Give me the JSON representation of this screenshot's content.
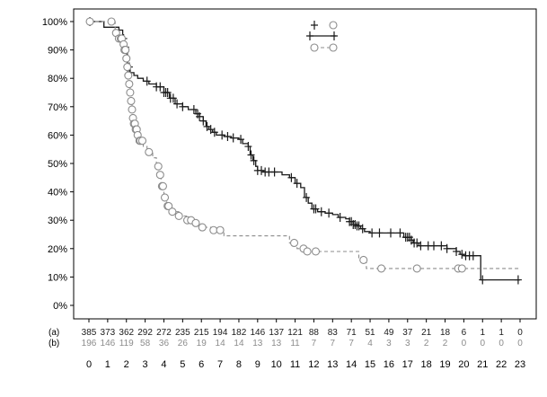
{
  "chart_data": {
    "type": "line",
    "title": "",
    "xlabel": "",
    "ylabel": "",
    "xlim": [
      0,
      23
    ],
    "ylim": [
      0,
      100
    ],
    "x_ticks": [
      0,
      1,
      2,
      3,
      4,
      5,
      6,
      7,
      8,
      9,
      10,
      11,
      12,
      13,
      14,
      15,
      16,
      17,
      18,
      19,
      20,
      21,
      22,
      23
    ],
    "y_ticks": [
      {
        "value": 0,
        "label": "0%"
      },
      {
        "value": 10,
        "label": "10%"
      },
      {
        "value": 20,
        "label": "20%"
      },
      {
        "value": 30,
        "label": "30%"
      },
      {
        "value": 40,
        "label": "40%"
      },
      {
        "value": 50,
        "label": "50%"
      },
      {
        "value": 60,
        "label": "60%"
      },
      {
        "value": 70,
        "label": "70%"
      },
      {
        "value": 80,
        "label": "80%"
      },
      {
        "value": 90,
        "label": "90%"
      },
      {
        "value": 100,
        "label": "100%"
      }
    ],
    "grid": false,
    "legend": {
      "placement": "top-right",
      "entries": [
        "",
        ""
      ]
    },
    "colors": {
      "series_a": "#1a1a1a",
      "series_b": "#8c8c8c"
    },
    "series": [
      {
        "key": "a",
        "style": "solid",
        "marker": "plus",
        "color": "#1a1a1a",
        "steps": [
          [
            0,
            100
          ],
          [
            0.8,
            98
          ],
          [
            1.6,
            97
          ],
          [
            1.8,
            94
          ],
          [
            1.9,
            91
          ],
          [
            2.05,
            84
          ],
          [
            2.2,
            82
          ],
          [
            2.4,
            81
          ],
          [
            2.6,
            80
          ],
          [
            2.9,
            79
          ],
          [
            3.2,
            78
          ],
          [
            3.6,
            77
          ],
          [
            4.0,
            75
          ],
          [
            4.3,
            73
          ],
          [
            4.6,
            71
          ],
          [
            5.0,
            70
          ],
          [
            5.3,
            69
          ],
          [
            5.7,
            67.5
          ],
          [
            5.9,
            66.5
          ],
          [
            6.1,
            65
          ],
          [
            6.25,
            63
          ],
          [
            6.4,
            62
          ],
          [
            6.6,
            61
          ],
          [
            6.8,
            60
          ],
          [
            7.2,
            59.5
          ],
          [
            7.6,
            59
          ],
          [
            8.0,
            58.5
          ],
          [
            8.2,
            57
          ],
          [
            8.5,
            56
          ],
          [
            8.6,
            53
          ],
          [
            8.75,
            51
          ],
          [
            8.9,
            49
          ],
          [
            9.0,
            47.5
          ],
          [
            9.3,
            47
          ],
          [
            10.3,
            46
          ],
          [
            10.7,
            45
          ],
          [
            11.0,
            43
          ],
          [
            11.3,
            41.5
          ],
          [
            11.5,
            38
          ],
          [
            11.7,
            36
          ],
          [
            11.9,
            34
          ],
          [
            12.2,
            33
          ],
          [
            12.6,
            32.5
          ],
          [
            13.0,
            32
          ],
          [
            13.3,
            31
          ],
          [
            13.7,
            30.5
          ],
          [
            13.9,
            29.5
          ],
          [
            14.1,
            28.5
          ],
          [
            14.3,
            28
          ],
          [
            14.5,
            27
          ],
          [
            14.7,
            26
          ],
          [
            15.0,
            25.5
          ],
          [
            16.0,
            25.5
          ],
          [
            16.8,
            24
          ],
          [
            17.2,
            23
          ],
          [
            17.3,
            22
          ],
          [
            17.6,
            21
          ],
          [
            18.0,
            21
          ],
          [
            19.1,
            20
          ],
          [
            19.6,
            19
          ],
          [
            19.8,
            18
          ],
          [
            20.0,
            17.5
          ],
          [
            20.9,
            9
          ],
          [
            23.0,
            9
          ]
        ],
        "censor_x": [
          0.05,
          1.85,
          1.95,
          2.05,
          2.15,
          3.1,
          3.6,
          3.8,
          4.0,
          4.1,
          4.2,
          4.35,
          4.5,
          4.7,
          5.0,
          5.6,
          5.8,
          5.9,
          6.1,
          6.3,
          6.5,
          6.7,
          7.1,
          7.4,
          7.7,
          8.1,
          8.5,
          8.65,
          8.8,
          9.0,
          9.2,
          9.4,
          9.6,
          9.9,
          10.8,
          11.1,
          11.6,
          12.0,
          12.1,
          12.4,
          12.8,
          13.4,
          13.9,
          14.0,
          14.1,
          14.2,
          14.3,
          14.4,
          14.6,
          15.1,
          15.5,
          16.1,
          16.6,
          16.9,
          17.0,
          17.1,
          17.2,
          17.35,
          17.5,
          17.7,
          18.1,
          18.4,
          18.8,
          19.1,
          19.6,
          19.9,
          20.1,
          20.3,
          20.5,
          21.0,
          22.9
        ]
      },
      {
        "key": "b",
        "style": "dashed",
        "marker": "circle",
        "color": "#8c8c8c",
        "steps": [
          [
            0,
            100
          ],
          [
            1.4,
            96
          ],
          [
            1.6,
            94
          ],
          [
            1.8,
            92
          ],
          [
            1.9,
            90
          ],
          [
            2.0,
            87
          ],
          [
            2.05,
            84
          ],
          [
            2.1,
            81
          ],
          [
            2.15,
            78
          ],
          [
            2.2,
            75
          ],
          [
            2.25,
            72
          ],
          [
            2.3,
            69
          ],
          [
            2.35,
            66
          ],
          [
            2.4,
            64
          ],
          [
            2.5,
            62
          ],
          [
            2.6,
            60
          ],
          [
            2.7,
            58
          ],
          [
            2.9,
            56
          ],
          [
            3.1,
            54
          ],
          [
            3.4,
            52
          ],
          [
            3.6,
            49
          ],
          [
            3.75,
            46
          ],
          [
            3.85,
            42
          ],
          [
            4.0,
            38
          ],
          [
            4.15,
            35
          ],
          [
            4.4,
            33
          ],
          [
            4.8,
            31.5
          ],
          [
            5.2,
            30
          ],
          [
            5.6,
            29
          ],
          [
            6.0,
            27.5
          ],
          [
            6.6,
            26.5
          ],
          [
            7.2,
            24.5
          ],
          [
            10.7,
            22
          ],
          [
            11.1,
            20
          ],
          [
            11.5,
            19
          ],
          [
            14.4,
            16
          ],
          [
            14.8,
            13
          ],
          [
            23.0,
            13
          ]
        ],
        "censor_x": [
          0.05,
          1.2,
          1.45,
          1.6,
          1.7,
          1.75,
          1.85,
          1.9,
          1.95,
          2.0,
          2.05,
          2.1,
          2.15,
          2.2,
          2.25,
          2.3,
          2.35,
          2.4,
          2.45,
          2.5,
          2.55,
          2.6,
          2.7,
          2.75,
          2.85,
          3.2,
          3.7,
          3.8,
          3.9,
          3.95,
          4.05,
          4.2,
          4.25,
          4.45,
          4.8,
          5.25,
          5.45,
          5.7,
          6.05,
          6.65,
          7.0,
          10.95,
          11.45,
          11.65,
          12.1,
          14.65,
          15.6,
          17.5,
          19.7,
          19.9
        ]
      }
    ],
    "at_risk": {
      "x": [
        0,
        1,
        2,
        3,
        4,
        5,
        6,
        7,
        8,
        9,
        10,
        11,
        12,
        13,
        14,
        15,
        16,
        17,
        18,
        19,
        20,
        21,
        22,
        23
      ],
      "rows": [
        {
          "label": "(a)",
          "values": [
            "385",
            "373",
            "362",
            "292",
            "272",
            "235",
            "215",
            "194",
            "182",
            "146",
            "137",
            "121",
            "88",
            "83",
            "71",
            "51",
            "49",
            "37",
            "21",
            "18",
            "6",
            "1",
            "1",
            "0"
          ]
        },
        {
          "label": "(b)",
          "values": [
            "196",
            "146",
            "119",
            "58",
            "36",
            "26",
            "19",
            "14",
            "14",
            "13",
            "13",
            "11",
            "7",
            "7",
            "7",
            "4",
            "3",
            "3",
            "2",
            "2",
            "0",
            "0",
            "0",
            "0"
          ]
        }
      ]
    }
  }
}
